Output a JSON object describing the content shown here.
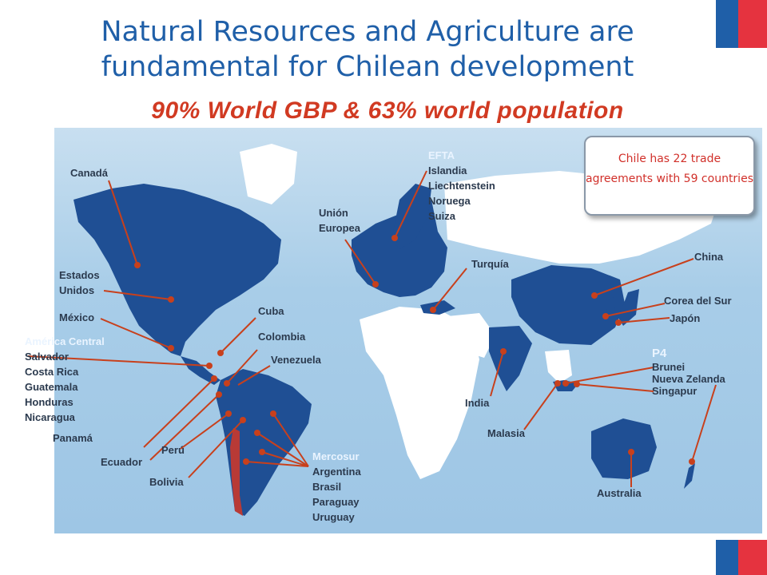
{
  "title": "Natural Resources and Agriculture are fundamental for Chilean development",
  "subtitle": "90% World GBP & 63% world population",
  "callout": "Chile has 22 trade agreements with 59 countries",
  "colors": {
    "land_partner": "#1f4f94",
    "land_other": "#ffffff",
    "ocean": "#a8cde8",
    "pointer": "#c8401c",
    "chile": "#b83a36"
  },
  "labels": {
    "canada": "Canadá",
    "estados_unidos": "Estados Unidos",
    "mexico": "México",
    "america_central": "América Central",
    "salvador": "Salvador",
    "costa_rica": "Costa Rica",
    "guatemala": "Guatemala",
    "honduras": "Honduras",
    "nicaragua": "Nicaragua",
    "panama": "Panamá",
    "ecuador": "Ecuador",
    "peru": "Perú",
    "bolivia": "Bolivia",
    "cuba": "Cuba",
    "colombia": "Colombia",
    "venezuela": "Venezuela",
    "mercosur": "Mercosur",
    "argentina": "Argentina",
    "brasil": "Brasil",
    "paraguay": "Paraguay",
    "uruguay": "Uruguay",
    "efta": "EFTA",
    "islandia": "Islandia",
    "liechtenstein": "Liechtenstein",
    "noruega": "Noruega",
    "suiza": "Suiza",
    "union_europea": "Unión Europea",
    "turquia": "Turquía",
    "india": "India",
    "malasia": "Malasia",
    "china": "China",
    "corea_del_sur": "Corea del Sur",
    "japon": "Japón",
    "p4": "P4",
    "brunei": "Brunei",
    "nueva_zelanda": "Nueva Zelanda",
    "singapur": "Singapur",
    "australia": "Australia"
  }
}
